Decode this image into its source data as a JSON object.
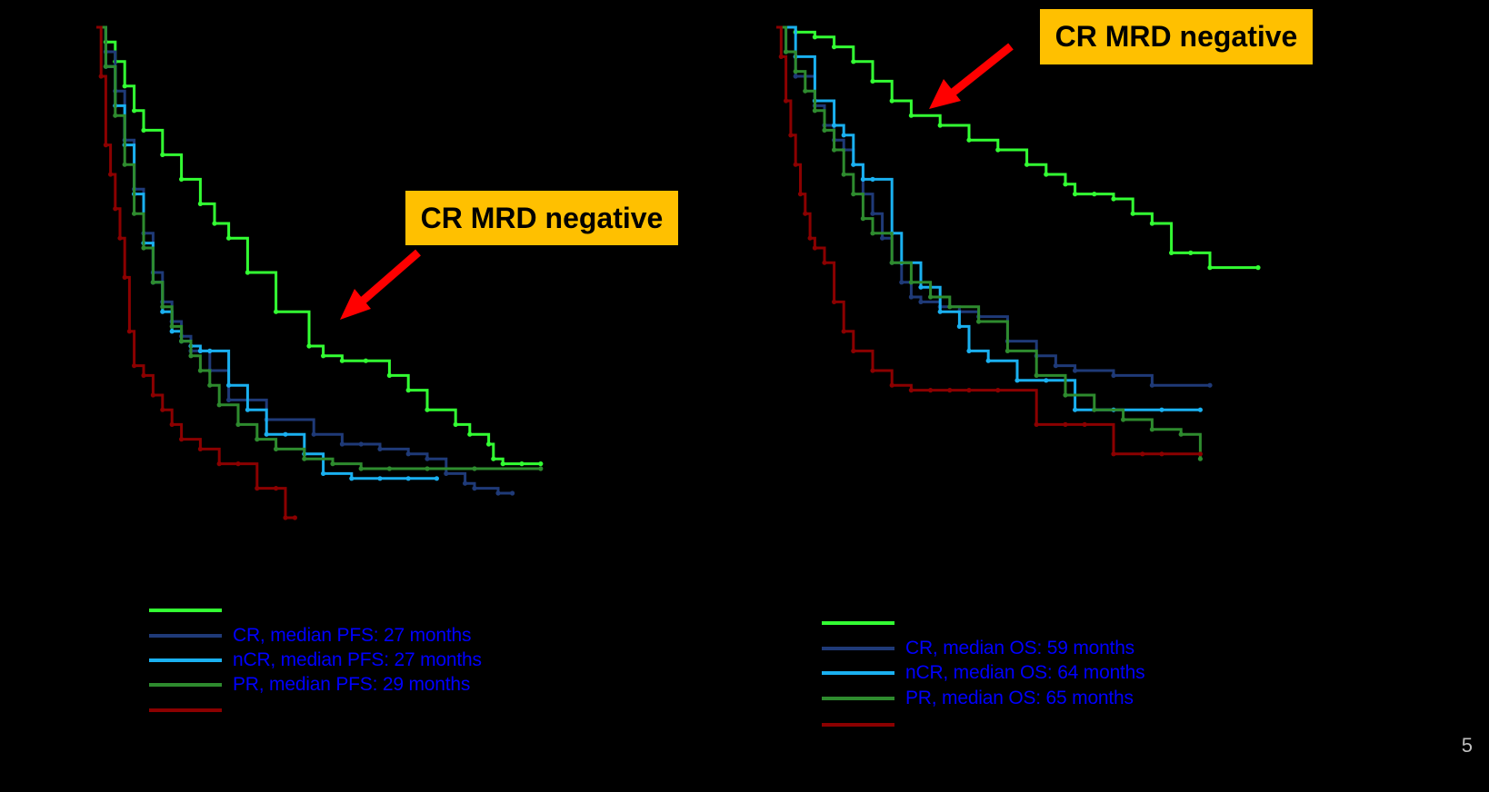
{
  "colors": {
    "background": "#000000",
    "cr_mrd_negative": "#33ff33",
    "cr": "#1f3a78",
    "ncr": "#1ab0f0",
    "pr": "#2e8b2e",
    "other": "#8b0000",
    "callout_bg": "#ffc000",
    "arrow": "#ff0000",
    "legend_text": "#0000ff"
  },
  "page_number": "5",
  "chart_data": [
    {
      "type": "line",
      "id": "pfs",
      "title": "",
      "xlabel": "",
      "ylabel": "",
      "xlim": [
        0,
        100
      ],
      "ylim": [
        0,
        1
      ],
      "callout": "CR MRD negative",
      "legend": [
        {
          "series": "cr_mrd_negative",
          "label": ""
        },
        {
          "series": "cr",
          "label": "CR, median PFS: 27 months"
        },
        {
          "series": "ncr",
          "label": "nCR, median PFS: 27 months"
        },
        {
          "series": "pr",
          "label": "PR, median PFS: 29 months"
        },
        {
          "series": "other",
          "label": ""
        }
      ],
      "series": [
        {
          "name": "cr_mrd_negative",
          "x": [
            0,
            2,
            4,
            6,
            8,
            10,
            14,
            18,
            22,
            25,
            28,
            32,
            38,
            45,
            48,
            52,
            57,
            62,
            66,
            70,
            76,
            79,
            83,
            84,
            86,
            90,
            94
          ],
          "y": [
            1.0,
            0.97,
            0.93,
            0.88,
            0.83,
            0.79,
            0.74,
            0.69,
            0.64,
            0.6,
            0.57,
            0.5,
            0.42,
            0.35,
            0.33,
            0.32,
            0.32,
            0.29,
            0.26,
            0.22,
            0.19,
            0.17,
            0.15,
            0.12,
            0.11,
            0.11,
            0.11
          ]
        },
        {
          "name": "cr",
          "x": [
            0,
            2,
            4,
            6,
            8,
            10,
            12,
            14,
            16,
            18,
            20,
            24,
            28,
            36,
            46,
            52,
            56,
            60,
            66,
            70,
            74,
            78,
            80,
            85,
            88
          ],
          "y": [
            1.0,
            0.95,
            0.87,
            0.77,
            0.67,
            0.58,
            0.5,
            0.44,
            0.4,
            0.37,
            0.34,
            0.3,
            0.24,
            0.2,
            0.17,
            0.15,
            0.15,
            0.14,
            0.13,
            0.12,
            0.09,
            0.07,
            0.06,
            0.05,
            0.05
          ]
        },
        {
          "name": "ncr",
          "x": [
            0,
            2,
            4,
            6,
            8,
            10,
            12,
            14,
            16,
            18,
            20,
            22,
            24,
            28,
            32,
            36,
            40,
            44,
            48,
            54,
            60,
            66,
            72
          ],
          "y": [
            1.0,
            0.92,
            0.84,
            0.76,
            0.66,
            0.56,
            0.48,
            0.42,
            0.38,
            0.36,
            0.35,
            0.34,
            0.34,
            0.27,
            0.22,
            0.17,
            0.17,
            0.13,
            0.09,
            0.08,
            0.08,
            0.08,
            0.08
          ]
        },
        {
          "name": "pr",
          "x": [
            0,
            2,
            4,
            6,
            8,
            10,
            12,
            14,
            16,
            18,
            20,
            22,
            24,
            26,
            30,
            34,
            38,
            44,
            50,
            56,
            62,
            70,
            80,
            94
          ],
          "y": [
            1.0,
            0.92,
            0.82,
            0.72,
            0.62,
            0.55,
            0.48,
            0.43,
            0.39,
            0.36,
            0.33,
            0.3,
            0.27,
            0.23,
            0.19,
            0.16,
            0.14,
            0.12,
            0.11,
            0.1,
            0.1,
            0.1,
            0.1,
            0.1
          ]
        },
        {
          "name": "other",
          "x": [
            0,
            1,
            2,
            3,
            4,
            5,
            6,
            7,
            8,
            10,
            12,
            14,
            16,
            18,
            22,
            26,
            30,
            34,
            38,
            40,
            42
          ],
          "y": [
            1.0,
            0.9,
            0.76,
            0.7,
            0.63,
            0.57,
            0.49,
            0.38,
            0.31,
            0.29,
            0.25,
            0.22,
            0.19,
            0.16,
            0.14,
            0.11,
            0.11,
            0.06,
            0.06,
            0.0,
            0.0
          ]
        }
      ]
    },
    {
      "type": "line",
      "id": "os",
      "title": "",
      "xlabel": "",
      "ylabel": "",
      "xlim": [
        0,
        100
      ],
      "ylim": [
        0,
        1
      ],
      "callout": "CR MRD negative",
      "legend": [
        {
          "series": "cr_mrd_negative",
          "label": ""
        },
        {
          "series": "cr",
          "label": "CR, median OS: 59 months"
        },
        {
          "series": "ncr",
          "label": "nCR, median OS: 64 months"
        },
        {
          "series": "pr",
          "label": "PR, median OS: 65 months"
        },
        {
          "series": "other",
          "label": ""
        }
      ],
      "series": [
        {
          "name": "cr_mrd_negative",
          "x": [
            0,
            4,
            8,
            12,
            16,
            20,
            24,
            28,
            34,
            40,
            46,
            52,
            56,
            60,
            62,
            66,
            70,
            74,
            78,
            82,
            86,
            90,
            100
          ],
          "y": [
            1.0,
            0.99,
            0.98,
            0.96,
            0.93,
            0.89,
            0.85,
            0.82,
            0.8,
            0.77,
            0.75,
            0.72,
            0.7,
            0.68,
            0.66,
            0.66,
            0.65,
            0.62,
            0.6,
            0.54,
            0.54,
            0.51,
            0.51
          ]
        },
        {
          "name": "cr",
          "x": [
            0,
            2,
            4,
            8,
            10,
            12,
            14,
            16,
            18,
            20,
            22,
            24,
            26,
            28,
            30,
            34,
            38,
            42,
            48,
            54,
            58,
            62,
            70,
            78,
            90
          ],
          "y": [
            1.0,
            0.95,
            0.9,
            0.84,
            0.8,
            0.77,
            0.75,
            0.72,
            0.66,
            0.62,
            0.57,
            0.52,
            0.48,
            0.45,
            0.44,
            0.43,
            0.42,
            0.41,
            0.36,
            0.33,
            0.31,
            0.3,
            0.29,
            0.27,
            0.27
          ]
        },
        {
          "name": "ncr",
          "x": [
            0,
            4,
            8,
            12,
            14,
            16,
            18,
            20,
            24,
            26,
            30,
            34,
            38,
            40,
            44,
            50,
            56,
            62,
            70,
            80,
            88
          ],
          "y": [
            1.0,
            0.94,
            0.85,
            0.8,
            0.78,
            0.72,
            0.69,
            0.69,
            0.58,
            0.52,
            0.47,
            0.42,
            0.39,
            0.34,
            0.32,
            0.28,
            0.28,
            0.22,
            0.22,
            0.22,
            0.22
          ]
        },
        {
          "name": "pr",
          "x": [
            0,
            2,
            4,
            6,
            8,
            10,
            12,
            14,
            16,
            18,
            20,
            24,
            28,
            32,
            36,
            42,
            48,
            54,
            60,
            66,
            72,
            78,
            84,
            88
          ],
          "y": [
            1.0,
            0.95,
            0.91,
            0.87,
            0.83,
            0.79,
            0.75,
            0.7,
            0.66,
            0.61,
            0.58,
            0.52,
            0.48,
            0.45,
            0.43,
            0.4,
            0.34,
            0.29,
            0.25,
            0.22,
            0.2,
            0.18,
            0.17,
            0.12
          ]
        },
        {
          "name": "other",
          "x": [
            0,
            1,
            2,
            3,
            4,
            5,
            6,
            7,
            8,
            10,
            12,
            14,
            16,
            20,
            24,
            28,
            32,
            36,
            40,
            46,
            54,
            60,
            64,
            70,
            76,
            80,
            88
          ],
          "y": [
            1.0,
            0.94,
            0.85,
            0.78,
            0.72,
            0.66,
            0.62,
            0.57,
            0.55,
            0.52,
            0.44,
            0.38,
            0.34,
            0.3,
            0.27,
            0.26,
            0.26,
            0.26,
            0.26,
            0.26,
            0.19,
            0.19,
            0.19,
            0.13,
            0.13,
            0.13,
            0.13
          ]
        }
      ]
    }
  ]
}
